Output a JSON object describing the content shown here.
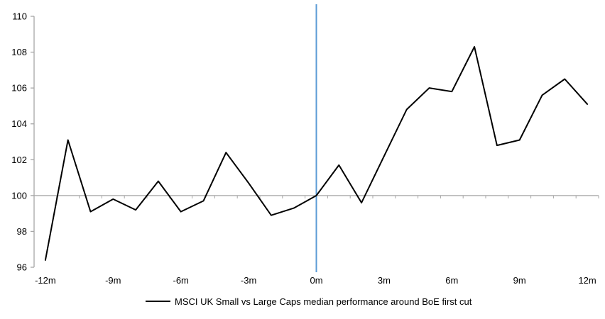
{
  "chart_data": {
    "type": "line",
    "title": "",
    "x": [
      -12,
      -11,
      -10,
      -9,
      -8,
      -7,
      -6,
      -5,
      -4,
      -3,
      -2,
      -1,
      0,
      1,
      2,
      3,
      4,
      5,
      6,
      7,
      8,
      9,
      10,
      11,
      12
    ],
    "series": [
      {
        "name": "MSCI UK Small vs Large Caps median performance around BoE first cut",
        "color": "#000000",
        "values": [
          96.4,
          103.1,
          99.1,
          99.8,
          99.2,
          100.8,
          99.1,
          99.7,
          102.4,
          100.7,
          98.9,
          99.3,
          100.0,
          101.7,
          99.6,
          102.2,
          104.8,
          106.0,
          105.8,
          108.3,
          102.8,
          103.1,
          105.6,
          106.5,
          105.1
        ]
      }
    ],
    "x_tick_labels": [
      "-12m",
      "-9m",
      "-6m",
      "-3m",
      "0m",
      "3m",
      "6m",
      "9m",
      "12m"
    ],
    "x_tick_values": [
      -12,
      -9,
      -6,
      -3,
      0,
      3,
      6,
      9,
      12
    ],
    "y_ticks": [
      96,
      98,
      100,
      102,
      104,
      106,
      108,
      110
    ],
    "ylim": [
      96,
      110
    ],
    "baseline_value": 100,
    "event_line_x": 0,
    "grid": "off",
    "legend_position": "bottom",
    "colors": {
      "series_line": "#000000",
      "event_line": "#5b9bd5",
      "axis": "#a6a6a6",
      "text": "#000000",
      "background": "#ffffff"
    },
    "legend": {
      "label": "MSCI UK Small vs Large Caps median performance around BoE first cut"
    }
  }
}
